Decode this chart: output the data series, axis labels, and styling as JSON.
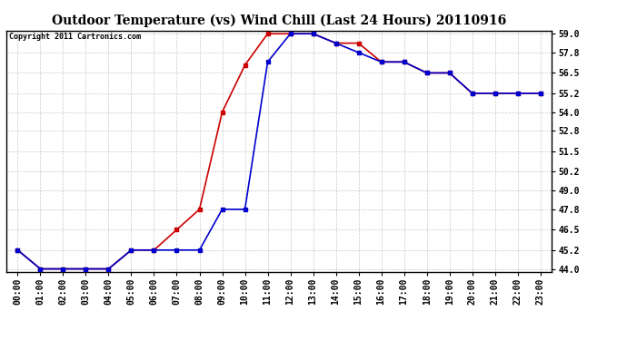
{
  "title": "Outdoor Temperature (vs) Wind Chill (Last 24 Hours) 20110916",
  "copyright": "Copyright 2011 Cartronics.com",
  "x_labels": [
    "00:00",
    "01:00",
    "02:00",
    "03:00",
    "04:00",
    "05:00",
    "06:00",
    "07:00",
    "08:00",
    "09:00",
    "10:00",
    "11:00",
    "12:00",
    "13:00",
    "14:00",
    "15:00",
    "16:00",
    "17:00",
    "18:00",
    "19:00",
    "20:00",
    "21:00",
    "22:00",
    "23:00"
  ],
  "temp_red": [
    45.2,
    44.0,
    44.0,
    44.0,
    44.0,
    45.2,
    45.2,
    46.5,
    47.8,
    54.0,
    57.0,
    59.0,
    59.0,
    59.0,
    58.4,
    58.4,
    57.2,
    57.2,
    56.5,
    56.5,
    55.2,
    55.2,
    55.2,
    55.2
  ],
  "wind_blue": [
    45.2,
    44.0,
    44.0,
    44.0,
    44.0,
    45.2,
    45.2,
    45.2,
    45.2,
    47.8,
    47.8,
    57.2,
    59.0,
    59.0,
    58.4,
    57.8,
    57.2,
    57.2,
    56.5,
    56.5,
    55.2,
    55.2,
    55.2,
    55.2
  ],
  "ylim_min": 44.0,
  "ylim_max": 59.0,
  "yticks": [
    44.0,
    45.2,
    46.5,
    47.8,
    49.0,
    50.2,
    51.5,
    52.8,
    54.0,
    55.2,
    56.5,
    57.8,
    59.0
  ],
  "red_color": "#cc0000",
  "blue_color": "#0000cc",
  "bg_color": "#ffffff",
  "grid_color": "#bbbbbb",
  "title_fontsize": 10,
  "copyright_fontsize": 6,
  "tick_fontsize": 7,
  "marker": "s",
  "marker_size": 3,
  "linewidth": 1.2
}
